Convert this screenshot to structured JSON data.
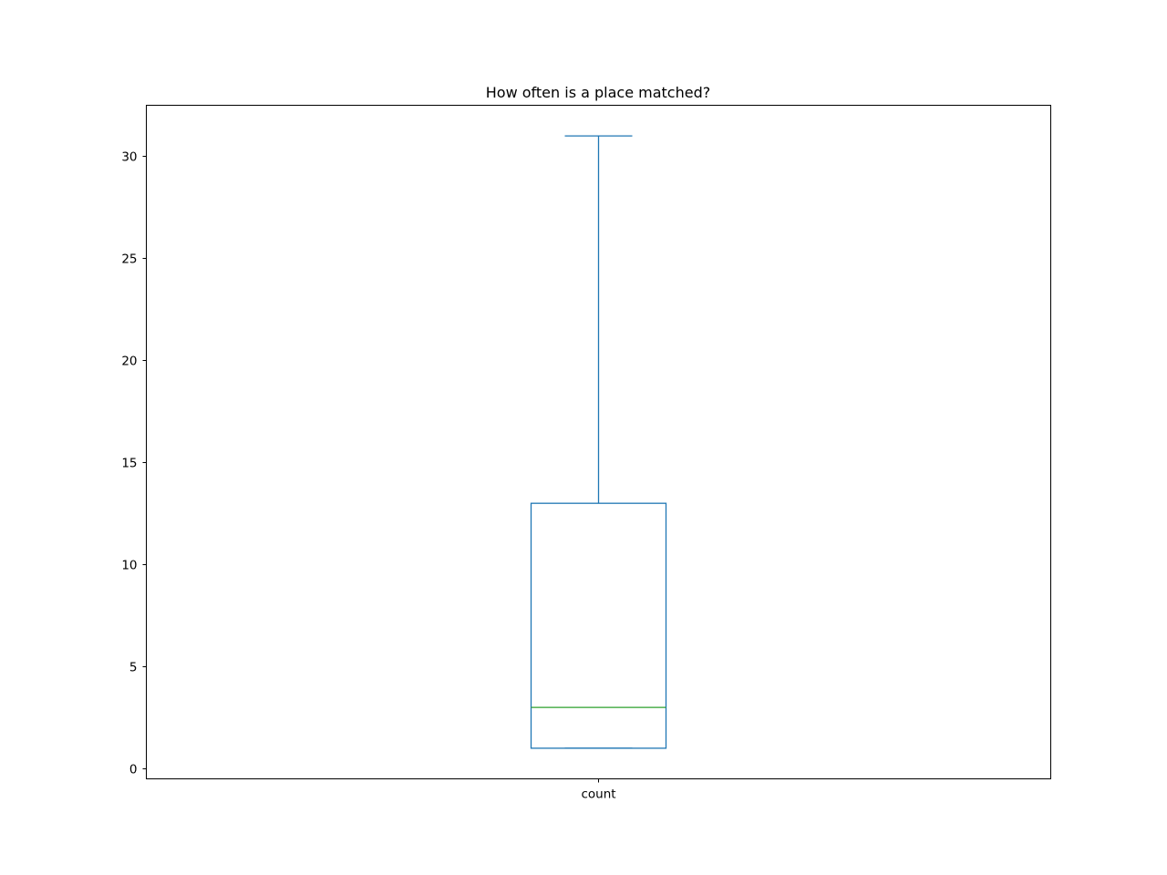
{
  "chart_data": {
    "type": "box",
    "title": "How often is a place matched?",
    "xlabel": "",
    "ylabel": "",
    "ylim": [
      -0.5,
      32.5
    ],
    "yticks": [
      0,
      5,
      10,
      15,
      20,
      25,
      30
    ],
    "grid": false,
    "categories": [
      "count"
    ],
    "boxes": [
      {
        "label": "count",
        "whislo": 1,
        "q1": 1,
        "med": 3,
        "q3": 13,
        "whishi": 31
      }
    ],
    "colors": {
      "box": "#1f77b4",
      "median": "#2ca02c",
      "axes": "#000000"
    }
  }
}
